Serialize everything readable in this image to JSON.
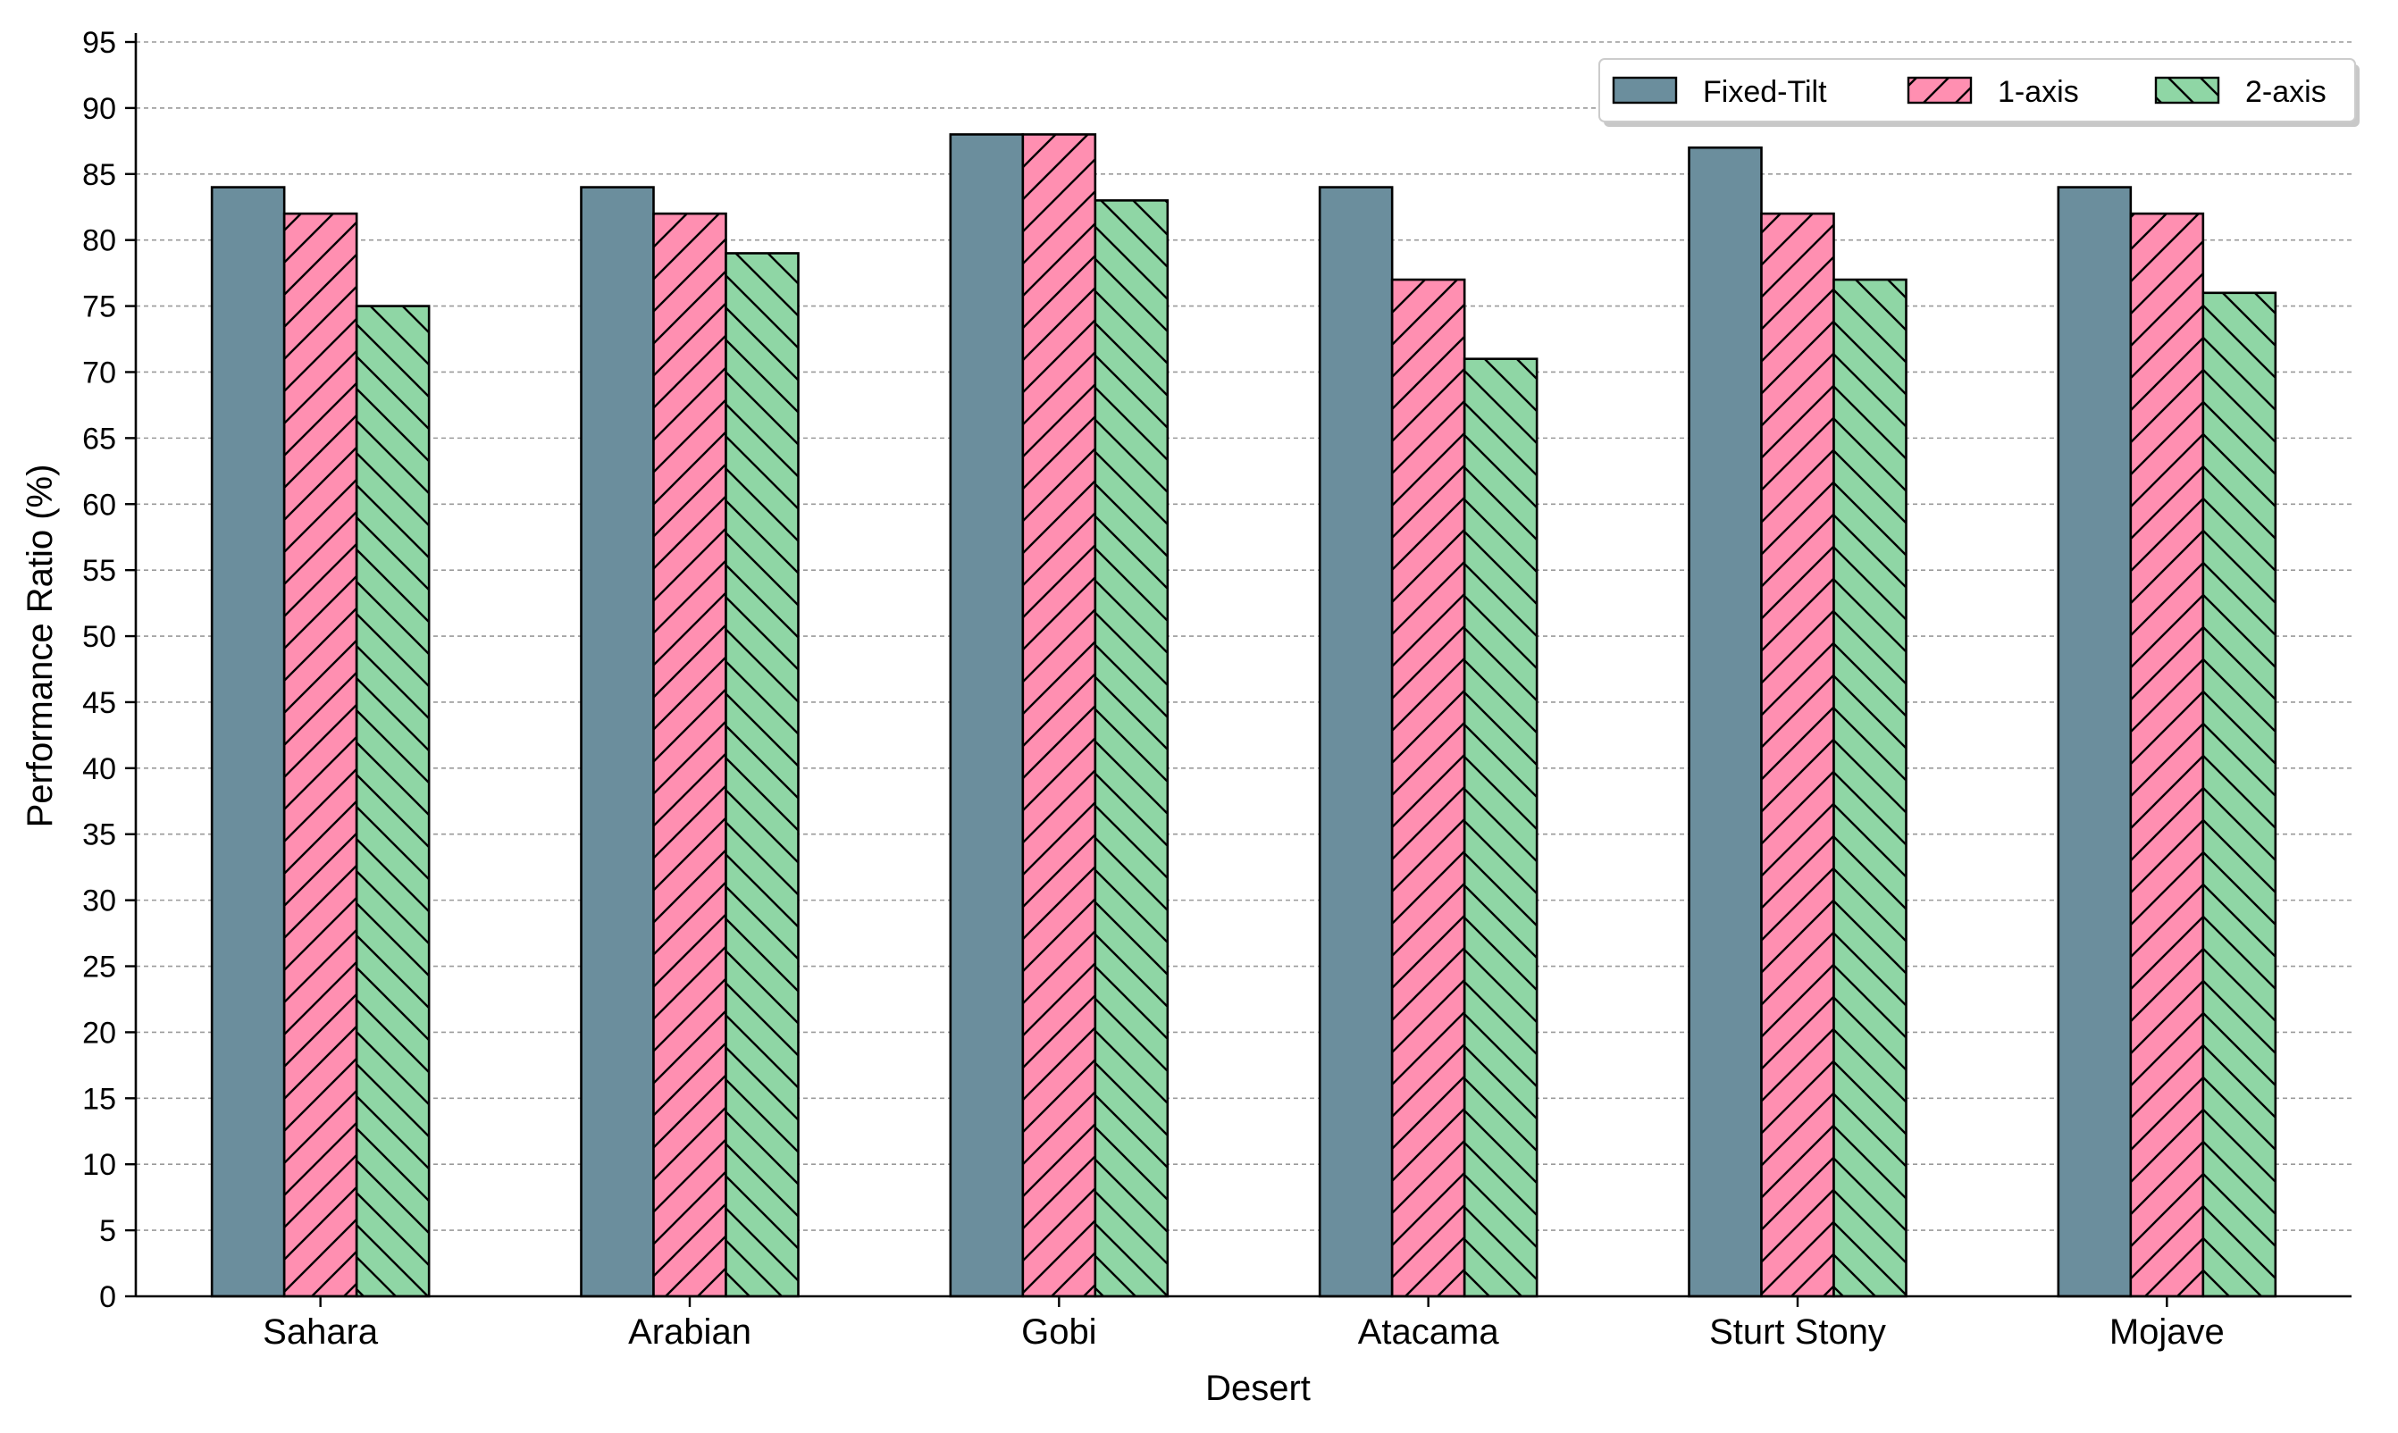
{
  "chart_data": {
    "type": "bar",
    "title": "",
    "xlabel": "Desert",
    "ylabel": "Performance Ratio (%)",
    "ylim": [
      0,
      95
    ],
    "ytick_step": 5,
    "grid": true,
    "grid_axis": "y",
    "grid_style": "dashed",
    "legend_position": "top-right",
    "categories": [
      "Sahara",
      "Arabian",
      "Gobi",
      "Atacama",
      "Sturt Stony",
      "Mojave"
    ],
    "series": [
      {
        "name": "Fixed-Tilt",
        "values": [
          84,
          84,
          88,
          84,
          87,
          84
        ],
        "color": "#6b8e9d",
        "hatch": "none"
      },
      {
        "name": "1-axis",
        "values": [
          82,
          82,
          88,
          77,
          82,
          82
        ],
        "color": "#ff8fb1",
        "hatch": "forward-diagonal"
      },
      {
        "name": "2-axis",
        "values": [
          75,
          79,
          83,
          71,
          77,
          76
        ],
        "color": "#8fd6a5",
        "hatch": "back-diagonal"
      }
    ]
  }
}
